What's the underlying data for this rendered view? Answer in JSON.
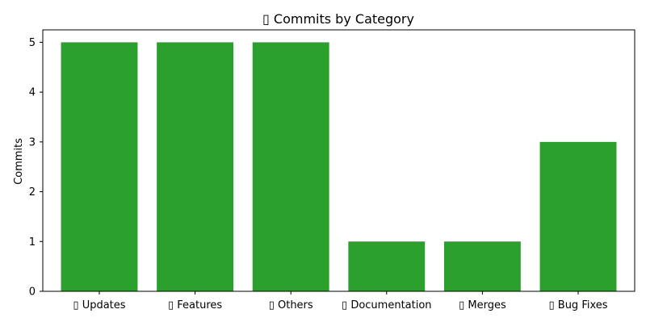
{
  "chart_data": {
    "type": "bar",
    "title": "▯ Commits by Category",
    "xlabel": "",
    "ylabel": "Commits",
    "categories": [
      "▯ Updates",
      "▯ Features",
      "▯ Others",
      "▯ Documentation",
      "▯ Merges",
      "▯ Bug Fixes"
    ],
    "values": [
      5,
      5,
      5,
      1,
      1,
      3
    ],
    "ylim": [
      0,
      5.25
    ],
    "yticks": [
      0,
      1,
      2,
      3,
      4,
      5
    ],
    "grid": false,
    "legend": "none",
    "bar_color": "#2ca02c"
  }
}
